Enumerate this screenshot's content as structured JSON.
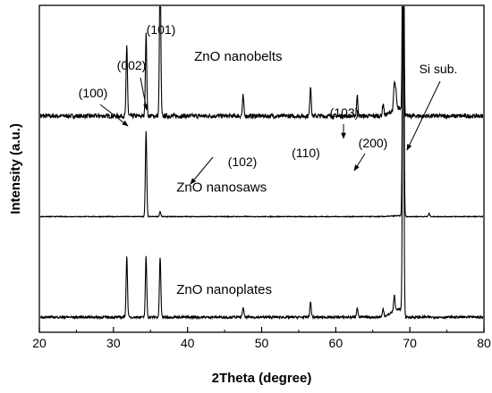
{
  "chart_data": {
    "type": "line",
    "xlabel": "2Theta (degree)",
    "ylabel": "Intensity (a.u.)",
    "xlim": [
      20,
      80
    ],
    "x_ticks": [
      20,
      30,
      40,
      50,
      60,
      70,
      80
    ],
    "grid": false,
    "legend": "none",
    "series": [
      {
        "name": "ZnO nanobelts",
        "baseline": 2.0,
        "peaks": [
          {
            "x": 31.8,
            "y": 0.7
          },
          {
            "x": 34.4,
            "y": 0.82
          },
          {
            "x": 36.3,
            "y": 1.5
          },
          {
            "x": 47.5,
            "y": 0.2
          },
          {
            "x": 56.6,
            "y": 0.3
          },
          {
            "x": 62.9,
            "y": 0.2
          },
          {
            "x": 66.4,
            "y": 0.12
          },
          {
            "x": 67.9,
            "y": 0.25
          },
          {
            "x": 68.1,
            "y": 0.18
          },
          {
            "x": 69.1,
            "y": 3.5
          }
        ]
      },
      {
        "name": "ZnO nanosaws",
        "baseline": 1.0,
        "peaks": [
          {
            "x": 34.4,
            "y": 0.85
          },
          {
            "x": 36.3,
            "y": 0.05
          },
          {
            "x": 69.1,
            "y": 3.5
          },
          {
            "x": 72.6,
            "y": 0.03
          }
        ]
      },
      {
        "name": "ZnO nanoplates",
        "baseline": 0.0,
        "peaks": [
          {
            "x": 31.8,
            "y": 0.6
          },
          {
            "x": 34.4,
            "y": 0.6
          },
          {
            "x": 36.3,
            "y": 0.6
          },
          {
            "x": 47.5,
            "y": 0.1
          },
          {
            "x": 56.6,
            "y": 0.15
          },
          {
            "x": 62.9,
            "y": 0.1
          },
          {
            "x": 66.4,
            "y": 0.08
          },
          {
            "x": 67.9,
            "y": 0.15
          },
          {
            "x": 69.1,
            "y": 3.5
          }
        ]
      }
    ],
    "annotations": [
      {
        "text": "(100)",
        "x": 31.8
      },
      {
        "text": "(002)",
        "x": 34.4
      },
      {
        "text": "(101)",
        "x": 36.3
      },
      {
        "text": "(102)",
        "x": 47.5
      },
      {
        "text": "(110)",
        "x": 56.6
      },
      {
        "text": "(103)",
        "x": 62.9
      },
      {
        "text": "(200)",
        "x": 66.4
      },
      {
        "text": "Si sub.",
        "x": 69.1
      }
    ]
  }
}
